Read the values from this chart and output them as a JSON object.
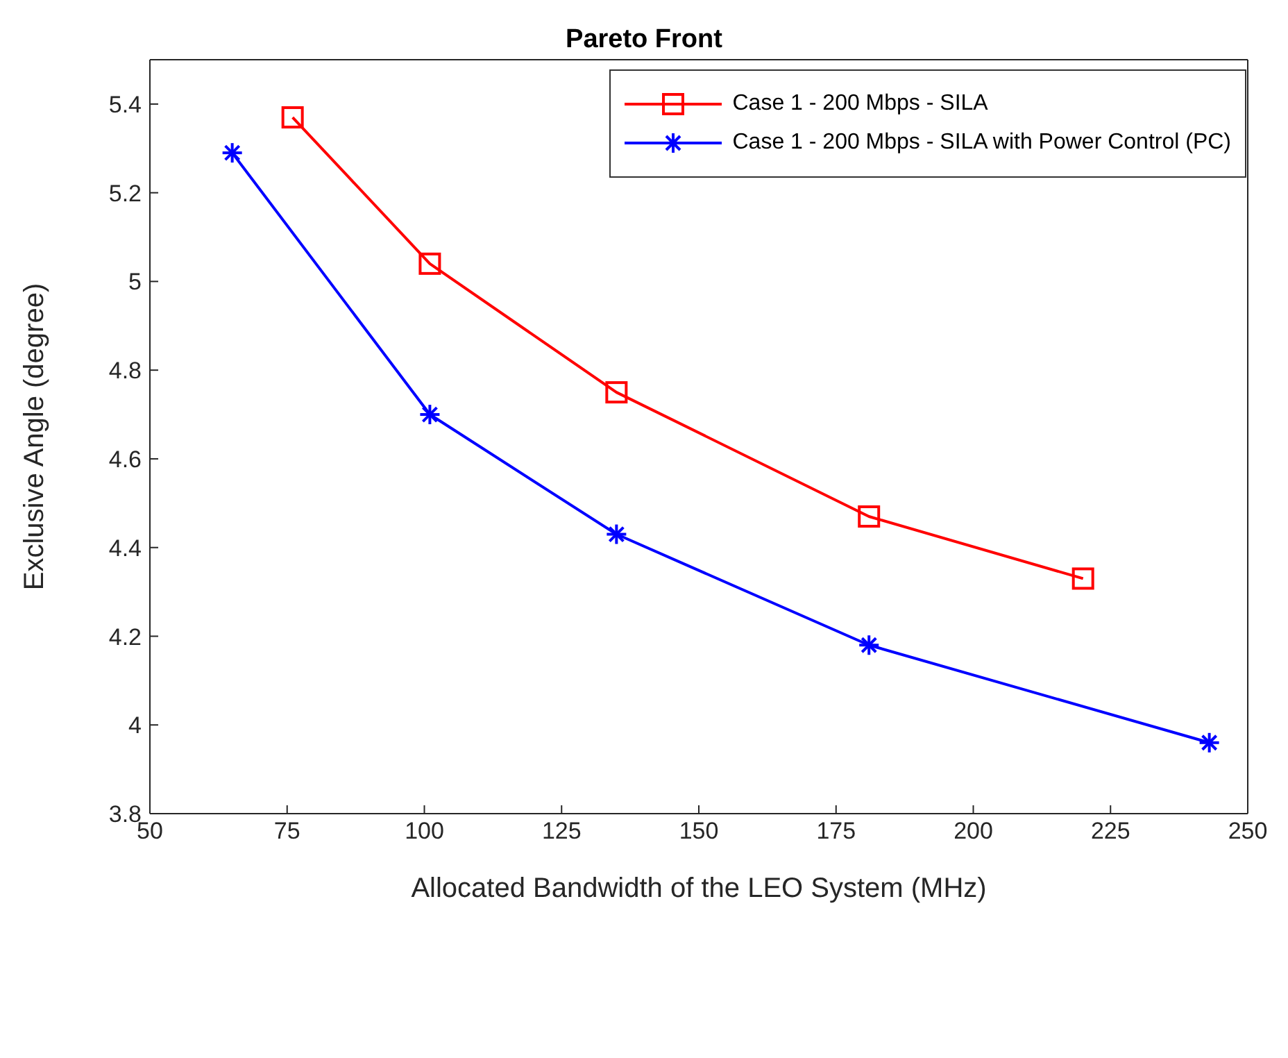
{
  "chart_data": {
    "type": "line",
    "title": "Pareto Front",
    "xlabel": "Allocated Bandwidth of the LEO System (MHz)",
    "ylabel": "Exclusive Angle (degree)",
    "xlim": [
      50,
      250
    ],
    "xticks": [
      50,
      75,
      100,
      125,
      150,
      175,
      200,
      225,
      250
    ],
    "ylim": [
      3.8,
      5.5
    ],
    "yticks": [
      3.8,
      4,
      4.2,
      4.4,
      4.6,
      4.8,
      5,
      5.2,
      5.4
    ],
    "grid": false,
    "legend": "top right",
    "series": [
      {
        "name": "Case 1 - 200 Mbps - SILA",
        "color": "#ff0000",
        "marker": "square",
        "x": [
          76,
          101,
          135,
          181,
          220
        ],
        "values": [
          5.37,
          5.04,
          4.75,
          4.47,
          4.33
        ]
      },
      {
        "name": "Case 1 - 200 Mbps - SILA with Power Control (PC)",
        "color": "#0000ff",
        "marker": "cross",
        "x": [
          65,
          101,
          135,
          181,
          243
        ],
        "values": [
          5.29,
          4.7,
          4.43,
          4.18,
          3.96
        ]
      }
    ]
  }
}
